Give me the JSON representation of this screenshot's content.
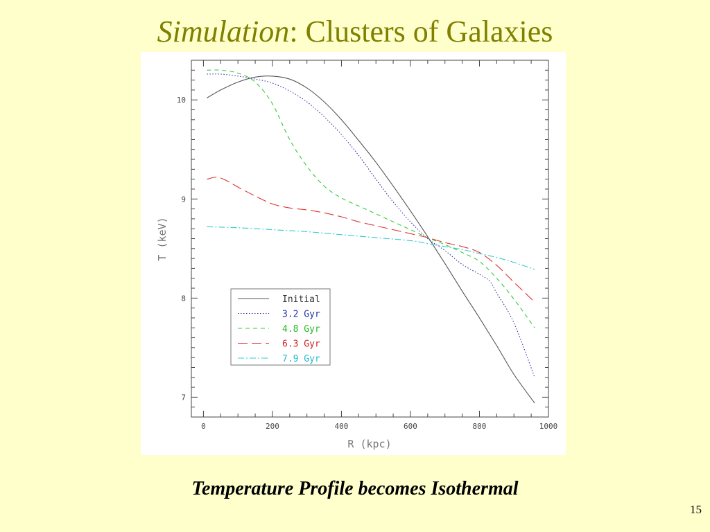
{
  "slide": {
    "title_em": "Simulation",
    "title_rest": ": Clusters of Galaxies",
    "caption": "Temperature Profile becomes Isothermal",
    "page_number": "15"
  },
  "chart_data": {
    "type": "line",
    "xlabel": "R (kpc)",
    "ylabel": "T (keV)",
    "xlim": [
      -35,
      1000
    ],
    "ylim": [
      6.8,
      10.4
    ],
    "xticks": [
      0,
      200,
      400,
      600,
      800,
      1000
    ],
    "yticks": [
      7,
      8,
      9,
      10
    ],
    "grid": false,
    "legend_position": "lower-left",
    "series": [
      {
        "name": "Initial",
        "color": "#555555",
        "dash": "",
        "label_color": "#333333",
        "x": [
          10,
          50,
          100,
          150,
          200,
          250,
          300,
          350,
          400,
          450,
          500,
          550,
          600,
          650,
          700,
          750,
          800,
          850,
          900,
          960
        ],
        "y": [
          10.02,
          10.1,
          10.18,
          10.23,
          10.24,
          10.21,
          10.12,
          9.98,
          9.8,
          9.59,
          9.37,
          9.13,
          8.88,
          8.62,
          8.35,
          8.07,
          7.8,
          7.52,
          7.23,
          6.94
        ]
      },
      {
        "name": "3.2 Gyr",
        "color": "#3333aa",
        "dash": "1.5,2.5",
        "label_color": "#2233aa",
        "x": [
          10,
          50,
          100,
          150,
          200,
          250,
          300,
          350,
          400,
          450,
          500,
          550,
          600,
          650,
          700,
          750,
          800,
          830,
          850,
          900,
          960
        ],
        "y": [
          10.26,
          10.26,
          10.24,
          10.21,
          10.17,
          10.09,
          9.98,
          9.83,
          9.65,
          9.44,
          9.2,
          8.97,
          8.77,
          8.6,
          8.48,
          8.34,
          8.24,
          8.17,
          8.05,
          7.75,
          7.2
        ]
      },
      {
        "name": "4.8 Gyr",
        "color": "#33cc33",
        "dash": "6,5",
        "label_color": "#22bb22",
        "x": [
          10,
          50,
          100,
          150,
          200,
          250,
          300,
          350,
          400,
          450,
          500,
          550,
          600,
          650,
          700,
          750,
          800,
          850,
          900,
          960
        ],
        "y": [
          10.3,
          10.3,
          10.27,
          10.18,
          9.96,
          9.6,
          9.33,
          9.13,
          9.01,
          8.93,
          8.85,
          8.77,
          8.69,
          8.61,
          8.54,
          8.46,
          8.37,
          8.2,
          7.99,
          7.7
        ]
      },
      {
        "name": "6.3 Gyr",
        "color": "#dd3333",
        "dash": "14,6",
        "label_color": "#cc2222",
        "x": [
          10,
          40,
          70,
          100,
          150,
          200,
          250,
          300,
          350,
          400,
          450,
          500,
          550,
          600,
          650,
          700,
          750,
          800,
          850,
          900,
          960
        ],
        "y": [
          9.2,
          9.22,
          9.18,
          9.12,
          9.03,
          8.95,
          8.91,
          8.89,
          8.86,
          8.82,
          8.77,
          8.73,
          8.69,
          8.65,
          8.61,
          8.56,
          8.52,
          8.46,
          8.33,
          8.16,
          7.96
        ]
      },
      {
        "name": "7.9 Gyr",
        "color": "#33cccc",
        "dash": "9,3,2,3",
        "label_color": "#22bbcc",
        "x": [
          10,
          100,
          200,
          300,
          400,
          500,
          600,
          650,
          700,
          750,
          800,
          850,
          900,
          960
        ],
        "y": [
          8.72,
          8.71,
          8.69,
          8.67,
          8.64,
          8.61,
          8.58,
          8.55,
          8.52,
          8.49,
          8.45,
          8.41,
          8.36,
          8.29
        ]
      }
    ]
  }
}
